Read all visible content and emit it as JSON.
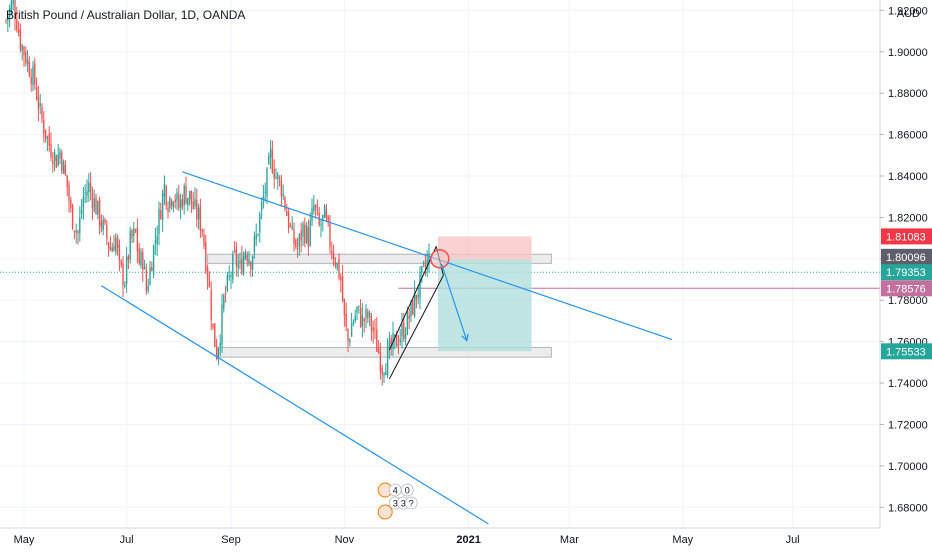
{
  "header": {
    "title": "British Pound / Australian Dollar, 1D, OANDA",
    "currency": "AUD"
  },
  "colors": {
    "bull": "#26a69a",
    "bear": "#ef5350",
    "trendline": "#2196f3",
    "zone_fill": "#e6e6e6",
    "zone_stroke": "#b2b5be",
    "target_fill": "#b2dfdb",
    "stop_fill": "#f7c6c6",
    "price_label_green": "#26a69a",
    "price_label_red": "#f23645",
    "price_label_gray": "#5d606b",
    "price_label_pink": "#c2709d"
  },
  "chart_data": {
    "type": "candlestick",
    "symbol": "British Pound / Australian Dollar",
    "interval": "1D",
    "exchange": "OANDA",
    "x_ticks": [
      "May",
      "Jul",
      "Sep",
      "Nov",
      "2021",
      "Mar",
      "May",
      "Jul"
    ],
    "y_ticks": [
      "1.68000",
      "1.70000",
      "1.72000",
      "1.74000",
      "1.76000",
      "1.78000",
      "1.80000",
      "1.82000",
      "1.84000",
      "1.86000",
      "1.88000",
      "1.90000",
      "1.92000"
    ],
    "ylim": [
      1.67,
      1.925
    ],
    "price_labels": [
      {
        "value": "1.81083",
        "price": 1.81083,
        "color": "red"
      },
      {
        "value": "1.80096",
        "price": 1.80096,
        "color": "gray"
      },
      {
        "value": "1.79353",
        "price": 1.79353,
        "color": "green"
      },
      {
        "value": "1.78576",
        "price": 1.78576,
        "color": "pink"
      },
      {
        "value": "1.75533",
        "price": 1.75533,
        "color": "green"
      }
    ],
    "path_points": [
      [
        0,
        1.915
      ],
      [
        4,
        1.925
      ],
      [
        8,
        1.905
      ],
      [
        12,
        1.895
      ],
      [
        16,
        1.885
      ],
      [
        19,
        1.87
      ],
      [
        24,
        1.855
      ],
      [
        28,
        1.848
      ],
      [
        30,
        1.852
      ],
      [
        34,
        1.835
      ],
      [
        36,
        1.822
      ],
      [
        40,
        1.812
      ],
      [
        43,
        1.83
      ],
      [
        46,
        1.835
      ],
      [
        50,
        1.825
      ],
      [
        54,
        1.815
      ],
      [
        58,
        1.805
      ],
      [
        61,
        1.81
      ],
      [
        63,
        1.795
      ],
      [
        66,
        1.79
      ],
      [
        69,
        1.808
      ],
      [
        72,
        1.812
      ],
      [
        74,
        1.798
      ],
      [
        76,
        1.8
      ],
      [
        78,
        1.785
      ],
      [
        80,
        1.795
      ],
      [
        83,
        1.81
      ],
      [
        86,
        1.825
      ],
      [
        88,
        1.835
      ],
      [
        90,
        1.828
      ],
      [
        93,
        1.832
      ],
      [
        96,
        1.825
      ],
      [
        99,
        1.832
      ],
      [
        102,
        1.83
      ],
      [
        104,
        1.825
      ],
      [
        107,
        1.82
      ],
      [
        109,
        1.815
      ],
      [
        111,
        1.8
      ],
      [
        113,
        1.785
      ],
      [
        115,
        1.765
      ],
      [
        117,
        1.755
      ],
      [
        119,
        1.765
      ],
      [
        121,
        1.78
      ],
      [
        124,
        1.79
      ],
      [
        127,
        1.8
      ],
      [
        130,
        1.795
      ],
      [
        133,
        1.805
      ],
      [
        136,
        1.8
      ],
      [
        139,
        1.81
      ],
      [
        142,
        1.825
      ],
      [
        145,
        1.838
      ],
      [
        147,
        1.85
      ],
      [
        150,
        1.84
      ],
      [
        153,
        1.835
      ],
      [
        156,
        1.822
      ],
      [
        159,
        1.81
      ],
      [
        162,
        1.805
      ],
      [
        165,
        1.815
      ],
      [
        168,
        1.81
      ],
      [
        171,
        1.825
      ],
      [
        174,
        1.815
      ],
      [
        177,
        1.82
      ],
      [
        180,
        1.808
      ],
      [
        183,
        1.8
      ],
      [
        186,
        1.79
      ],
      [
        188,
        1.77
      ],
      [
        190,
        1.76
      ],
      [
        192,
        1.768
      ],
      [
        195,
        1.775
      ],
      [
        198,
        1.77
      ],
      [
        201,
        1.772
      ],
      [
        204,
        1.765
      ],
      [
        207,
        1.755
      ],
      [
        209,
        1.748
      ],
      [
        212,
        1.753
      ],
      [
        215,
        1.758
      ],
      [
        218,
        1.762
      ],
      [
        221,
        1.766
      ],
      [
        224,
        1.772
      ],
      [
        227,
        1.78
      ],
      [
        230,
        1.788
      ],
      [
        233,
        1.796
      ],
      [
        235,
        1.8
      ]
    ],
    "annotations": {
      "trendline_upper": {
        "from": [
          98,
          1.842
        ],
        "to": [
          370,
          1.761
        ]
      },
      "trendline_lower": {
        "from": [
          53,
          1.787
        ],
        "to": [
          268,
          1.672
        ]
      },
      "resistance_zone": {
        "x_from": 112,
        "x_to": 303,
        "y_top": 1.8022,
        "y_bottom": 1.7978
      },
      "support_zone": {
        "x_from": 119,
        "x_to": 303,
        "y_top": 1.7572,
        "y_bottom": 1.7525
      },
      "rising_channel": {
        "lower": [
          [
            213,
            1.742
          ],
          [
            243,
            1.792
          ]
        ],
        "upper": [
          [
            213,
            1.756
          ],
          [
            239,
            1.806
          ]
        ]
      },
      "position_short": {
        "x_from": 240,
        "x_to": 292,
        "entry": 1.7996,
        "stop": 1.81083,
        "target": 1.75533
      },
      "entry_circle": {
        "x": 241,
        "y": 1.8
      },
      "projection_arrow": {
        "from": [
          242,
          1.7975
        ],
        "to": [
          256,
          1.7605
        ]
      }
    },
    "badges": [
      "4",
      "0",
      "3",
      "3",
      "?"
    ]
  }
}
